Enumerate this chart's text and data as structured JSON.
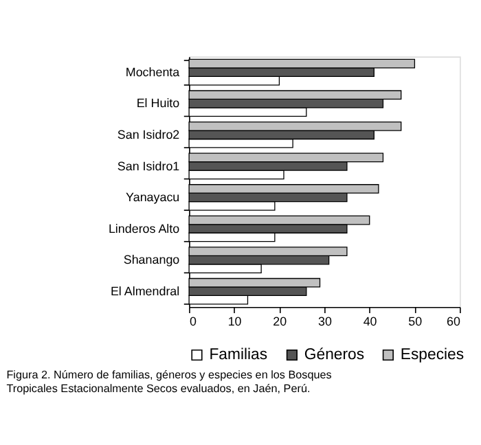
{
  "chart_data": {
    "type": "bar",
    "orientation": "horizontal",
    "categories": [
      "Mochenta",
      "El Huito",
      "San Isidro2",
      "San Isidro1",
      "Yanayacu",
      "Linderos Alto",
      "Shanango",
      "El Almendral"
    ],
    "series": [
      {
        "name": "Familias",
        "color": "#ffffff",
        "values": [
          20,
          26,
          23,
          21,
          19,
          19,
          16,
          13
        ]
      },
      {
        "name": "Géneros",
        "color": "#555555",
        "values": [
          41,
          43,
          41,
          35,
          35,
          35,
          31,
          26
        ]
      },
      {
        "name": "Especies",
        "color": "#c0c0c0",
        "values": [
          50,
          47,
          47,
          43,
          42,
          40,
          35,
          29
        ]
      }
    ],
    "xlim": [
      0,
      60
    ],
    "xticks": [
      0,
      10,
      20,
      30,
      40,
      50,
      60
    ],
    "grid": false,
    "legend": "bottom",
    "annotations": [
      "Figura 2. Número de familias, géneros y especies en los Bosques",
      "Tropicales Estacionalmente Secos evaluados, en Jaén, Perú."
    ]
  }
}
